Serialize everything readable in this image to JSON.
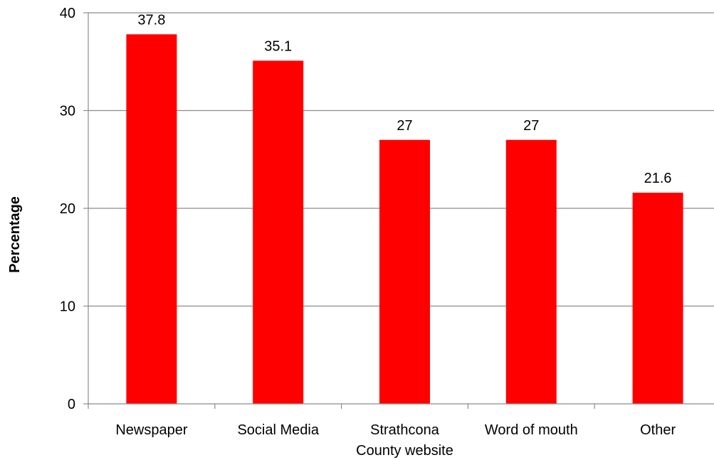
{
  "chart_data": {
    "type": "bar",
    "title": "",
    "xlabel": "",
    "ylabel": "Percentage",
    "categories": [
      [
        "Newspaper"
      ],
      [
        "Social Media"
      ],
      [
        "Strathcona",
        "County website"
      ],
      [
        "Word of mouth"
      ],
      [
        "Other"
      ]
    ],
    "values": [
      37.8,
      35.1,
      27,
      27,
      21.6
    ],
    "value_labels": [
      "37.8",
      "35.1",
      "27",
      "27",
      "21.6"
    ],
    "ylim": [
      0,
      40
    ],
    "yticks": [
      0,
      10,
      20,
      30,
      40
    ],
    "grid": true,
    "legend": "none",
    "colors": {
      "bar": "#ff0000",
      "grid": "#8c8c8c",
      "axis": "#8c8c8c"
    }
  }
}
